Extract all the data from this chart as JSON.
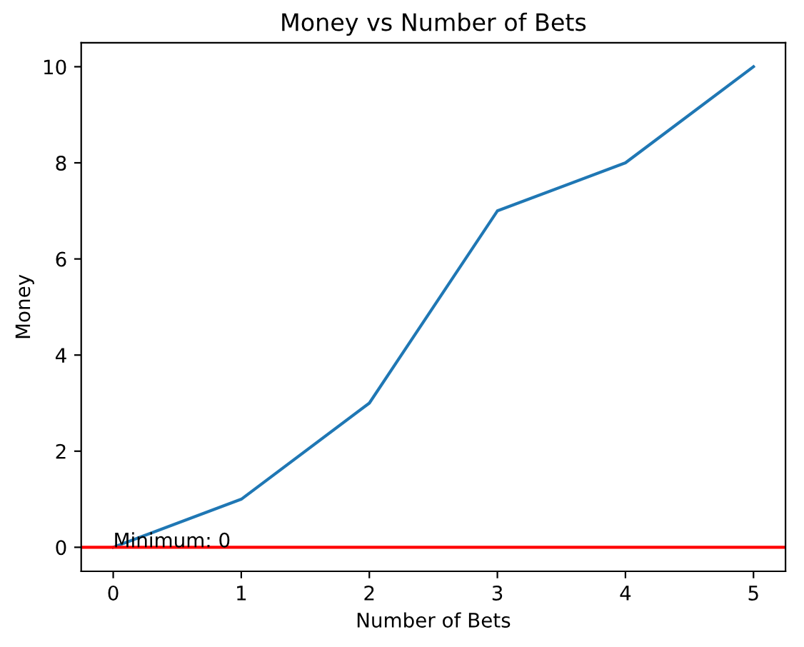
{
  "chart_data": {
    "type": "line",
    "title": "Money vs Number of Bets",
    "xlabel": "Number of Bets",
    "ylabel": "Money",
    "x": [
      0,
      1,
      2,
      3,
      4,
      5
    ],
    "series": [
      {
        "color": "#1f77b4",
        "values": [
          0,
          1,
          3,
          7,
          8,
          10
        ]
      }
    ],
    "xlim": [
      -0.25,
      5.25
    ],
    "xticks": [
      0,
      1,
      2,
      3,
      4,
      5
    ],
    "ylim": [
      -0.5,
      10.5
    ],
    "yticks": [
      0,
      2,
      4,
      6,
      8,
      10
    ],
    "ref_lines": [
      {
        "axis": "y",
        "value": 0,
        "color": "#ff0000",
        "line_style": "solid"
      }
    ],
    "annotations": [
      {
        "text": "Minimum: 0",
        "x": 0,
        "y": 0
      }
    ],
    "grid": false,
    "marker": "none",
    "line_style": "solid"
  }
}
